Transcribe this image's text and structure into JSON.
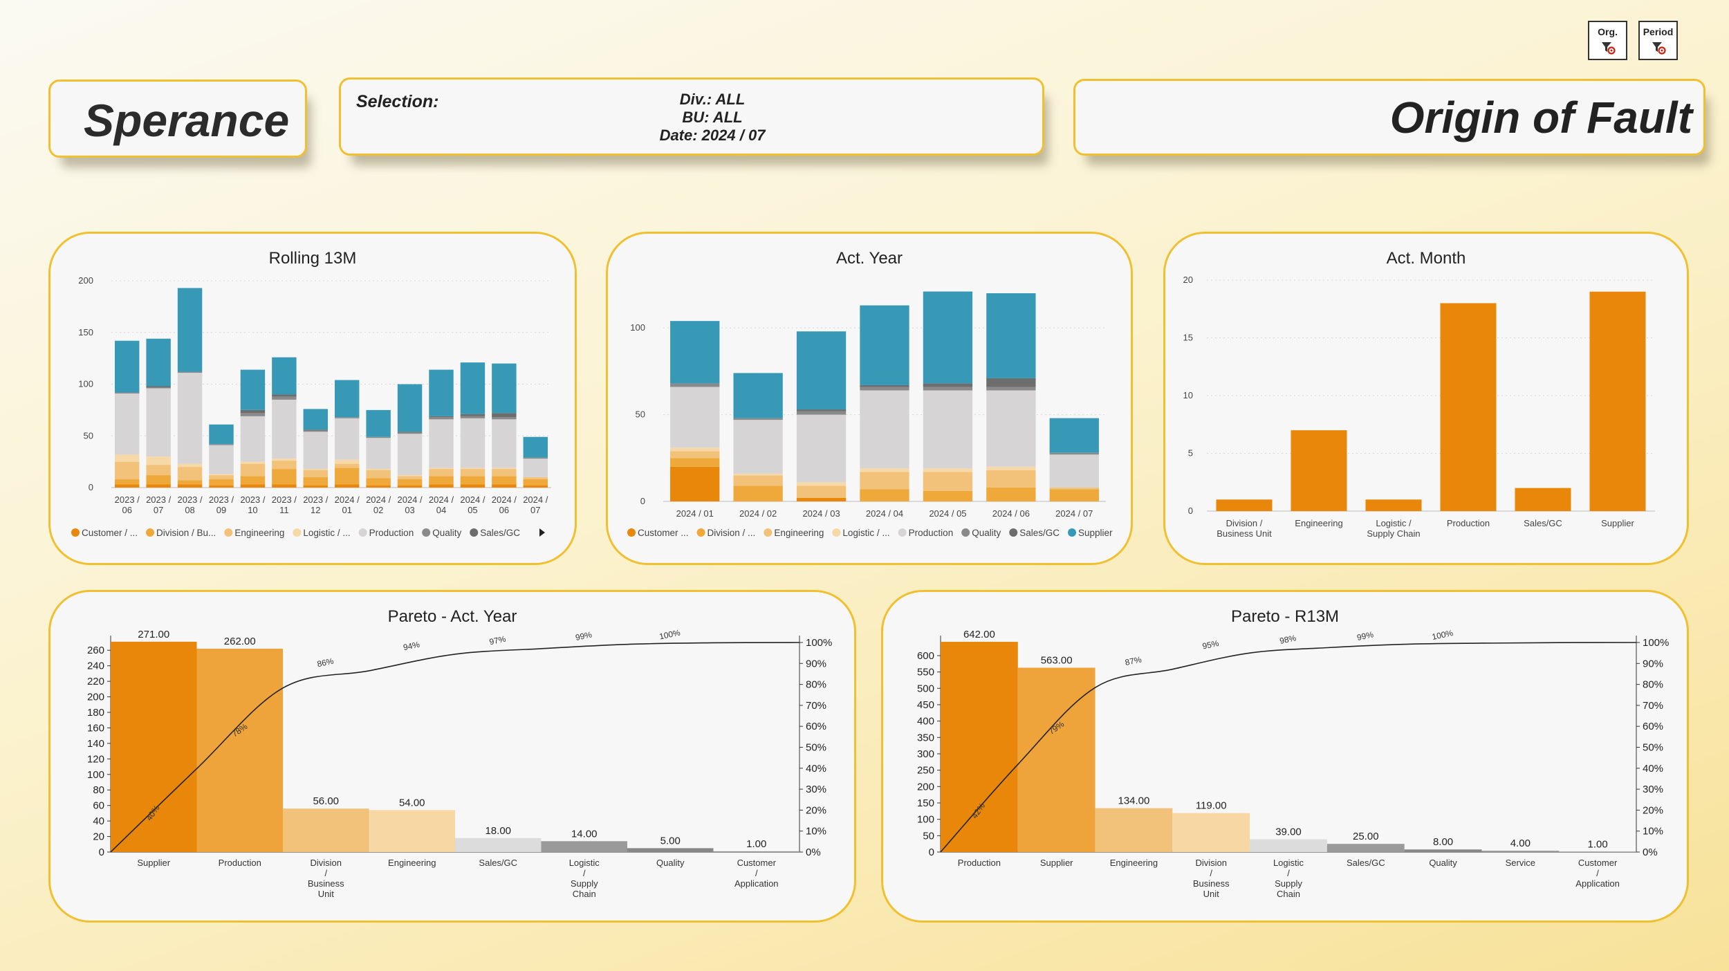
{
  "header": {
    "brand": "Sperance",
    "selection_label": "Selection:",
    "selection_div": "Div.: ALL",
    "selection_bu": "BU: ALL",
    "selection_date": "Date: 2024 / 07",
    "page_title": "Origin of Fault",
    "org_button": "Org.",
    "period_button": "Period"
  },
  "colors": {
    "customer": "#e8870a",
    "division": "#eea93a",
    "engineering": "#f2c27a",
    "logistic": "#f7d9a8",
    "production": "#d6d4d4",
    "quality": "#8a8a8a",
    "salesgc": "#6d6d6d",
    "supplier": "#3899b7",
    "month_bar": "#e8870a"
  },
  "chart_data": [
    {
      "id": "rolling13m",
      "type": "bar",
      "stacked": true,
      "title": "Rolling 13M",
      "categories": [
        "2023 / 06",
        "2023 / 07",
        "2023 / 08",
        "2023 / 09",
        "2023 / 10",
        "2023 / 11",
        "2023 / 12",
        "2024 / 01",
        "2024 / 02",
        "2024 / 03",
        "2024 / 04",
        "2024 / 05",
        "2024 / 06",
        "2024 / 07"
      ],
      "ylim": [
        0,
        200
      ],
      "yticks": [
        0,
        50,
        100,
        150,
        200
      ],
      "legend": [
        "Customer / ...",
        "Division / Bu...",
        "Engineering",
        "Logistic / ...",
        "Production",
        "Quality",
        "Sales/GC"
      ],
      "series": [
        {
          "name": "Customer",
          "values": [
            3,
            3,
            3,
            2,
            3,
            3,
            2,
            3,
            2,
            2,
            3,
            3,
            3,
            2
          ]
        },
        {
          "name": "Division",
          "values": [
            5,
            9,
            4,
            6,
            8,
            15,
            8,
            16,
            7,
            6,
            8,
            8,
            8,
            6
          ]
        },
        {
          "name": "Engineering",
          "values": [
            17,
            10,
            13,
            4,
            12,
            8,
            7,
            4,
            8,
            3,
            7,
            7,
            7,
            2
          ]
        },
        {
          "name": "Logistic",
          "values": [
            7,
            8,
            3,
            1,
            2,
            2,
            1,
            4,
            1,
            1,
            1,
            1,
            1,
            0
          ]
        },
        {
          "name": "Production",
          "values": [
            59,
            66,
            88,
            28,
            44,
            57,
            36,
            40,
            30,
            40,
            47,
            48,
            47,
            18
          ]
        },
        {
          "name": "Quality",
          "values": [
            1,
            1,
            1,
            1,
            3,
            3,
            1,
            1,
            1,
            1,
            2,
            2,
            2,
            1
          ]
        },
        {
          "name": "Sales/GC",
          "values": [
            0,
            1,
            0,
            0,
            3,
            2,
            1,
            0,
            0,
            1,
            1,
            2,
            4,
            0
          ]
        },
        {
          "name": "Supplier",
          "values": [
            50,
            46,
            81,
            19,
            39,
            36,
            20,
            36,
            26,
            46,
            45,
            50,
            48,
            20
          ]
        }
      ]
    },
    {
      "id": "actyear",
      "type": "bar",
      "stacked": true,
      "title": "Act. Year",
      "categories": [
        "2024 / 01",
        "2024 / 02",
        "2024 / 03",
        "2024 / 04",
        "2024 / 05",
        "2024 / 06",
        "2024 / 07"
      ],
      "ylim": [
        0,
        120
      ],
      "yticks": [
        0,
        50,
        100
      ],
      "legend": [
        "Customer ...",
        "Division / ...",
        "Engineering",
        "Logistic / ...",
        "Production",
        "Quality",
        "Sales/GC",
        "Supplier"
      ],
      "series": [
        {
          "name": "Customer",
          "values": [
            20,
            0,
            2,
            0,
            0,
            0,
            0
          ]
        },
        {
          "name": "Division",
          "values": [
            5,
            9,
            0,
            7,
            6,
            8,
            7
          ]
        },
        {
          "name": "Engineering",
          "values": [
            4,
            6,
            7,
            10,
            11,
            10,
            1
          ]
        },
        {
          "name": "Logistic",
          "values": [
            2,
            1,
            2,
            2,
            2,
            2,
            0
          ]
        },
        {
          "name": "Production",
          "values": [
            35,
            31,
            39,
            45,
            45,
            44,
            19
          ]
        },
        {
          "name": "Quality",
          "values": [
            2,
            1,
            2,
            2,
            2,
            2,
            1
          ]
        },
        {
          "name": "Sales/GC",
          "values": [
            0,
            0,
            1,
            1,
            2,
            5,
            0
          ]
        },
        {
          "name": "Supplier",
          "values": [
            36,
            26,
            45,
            46,
            53,
            49,
            20
          ]
        }
      ]
    },
    {
      "id": "actmonth",
      "type": "bar",
      "title": "Act. Month",
      "categories": [
        "Division / Business Unit",
        "Engineering",
        "Logistic / Supply Chain",
        "Production",
        "Sales/GC",
        "Supplier"
      ],
      "values": [
        1,
        7,
        1,
        18,
        2,
        19
      ],
      "ylim": [
        0,
        20
      ],
      "yticks": [
        0,
        5,
        10,
        15,
        20
      ]
    },
    {
      "id": "paretoyear",
      "type": "bar",
      "title": "Pareto - Act. Year",
      "categories": [
        "Supplier",
        "Production",
        "Division / Business Unit",
        "Engineering",
        "Sales/GC",
        "Logistic / Supply Chain",
        "Quality",
        "Customer / Application"
      ],
      "values": [
        271,
        262,
        56,
        54,
        18,
        14,
        5,
        1
      ],
      "value_labels": [
        "271.00",
        "262.00",
        "56.00",
        "54.00",
        "18.00",
        "14.00",
        "5.00",
        "1.00"
      ],
      "cumulative_labels": [
        "40%",
        "78%",
        "86%",
        "94%",
        "97%",
        "99%",
        "100%"
      ],
      "ylim": [
        0,
        270
      ],
      "yticks": [
        0,
        20,
        40,
        60,
        80,
        100,
        120,
        140,
        160,
        180,
        200,
        220,
        240,
        260
      ],
      "y2ticks": [
        "0%",
        "10%",
        "20%",
        "30%",
        "40%",
        "50%",
        "60%",
        "70%",
        "80%",
        "90%",
        "100%"
      ]
    },
    {
      "id": "paretor13m",
      "type": "bar",
      "title": "Pareto - R13M",
      "categories": [
        "Production",
        "Supplier",
        "Engineering",
        "Division / Business Unit",
        "Logistic / Supply Chain",
        "Sales/GC",
        "Quality",
        "Service",
        "Customer / Application"
      ],
      "values": [
        642,
        563,
        134,
        119,
        39,
        25,
        8,
        4,
        1
      ],
      "value_labels": [
        "642.00",
        "563.00",
        "134.00",
        "119.00",
        "39.00",
        "25.00",
        "8.00",
        "4.00",
        "1.00"
      ],
      "cumulative_labels": [
        "42%",
        "79%",
        "87%",
        "95%",
        "98%",
        "99%",
        "100%"
      ],
      "ylim": [
        0,
        640
      ],
      "yticks": [
        0,
        50,
        100,
        150,
        200,
        250,
        300,
        350,
        400,
        450,
        500,
        550,
        600
      ],
      "y2ticks": [
        "0%",
        "10%",
        "20%",
        "30%",
        "40%",
        "50%",
        "60%",
        "70%",
        "80%",
        "90%",
        "100%"
      ]
    }
  ]
}
